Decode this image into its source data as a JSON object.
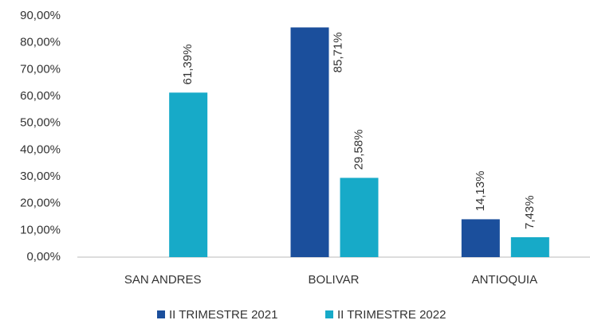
{
  "chart_data": {
    "type": "bar",
    "categories": [
      "SAN ANDRES",
      "BOLIVAR",
      "ANTIOQUIA"
    ],
    "series": [
      {
        "name": "II TRIMESTRE 2021",
        "color": "#1b4f9c",
        "values": [
          null,
          85.71,
          14.13
        ],
        "value_labels": [
          null,
          "85,71%",
          "14,13%"
        ]
      },
      {
        "name": "II TRIMESTRE 2022",
        "color": "#17aac8",
        "values": [
          61.39,
          29.58,
          7.43
        ],
        "value_labels": [
          "61,39%",
          "29,58%",
          "7,43%"
        ]
      }
    ],
    "ylim": [
      0,
      90
    ],
    "yticks": [
      {
        "value": 0,
        "label": "0,00%"
      },
      {
        "value": 10,
        "label": "10,00%"
      },
      {
        "value": 20,
        "label": "20,00%"
      },
      {
        "value": 30,
        "label": "30,00%"
      },
      {
        "value": 40,
        "label": "40,00%"
      },
      {
        "value": 50,
        "label": "50,00%"
      },
      {
        "value": 60,
        "label": "60,00%"
      },
      {
        "value": 70,
        "label": "70,00%"
      },
      {
        "value": 80,
        "label": "80,00%"
      },
      {
        "value": 90,
        "label": "90,00%"
      }
    ],
    "grid": false,
    "legend": "bottom"
  }
}
